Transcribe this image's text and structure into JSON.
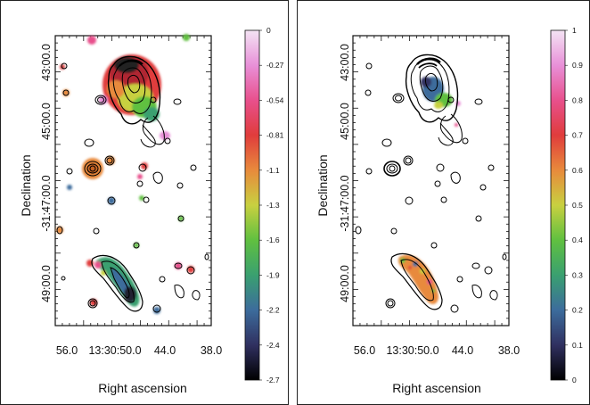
{
  "figure": {
    "panels": [
      {
        "id": "left",
        "y_axis_title": "Declination",
        "x_axis_title": "Right ascension",
        "dec_ticks": [
          "43:00.0",
          "45:00.0",
          "-31:47:00.0",
          "49:00.0"
        ],
        "ra_ticks": [
          "56.0",
          "13:30:50.0",
          "44.0",
          "38.0"
        ],
        "colorbar": {
          "labels": [
            "0",
            "-0.27",
            "-0.54",
            "-0.81",
            "-1.1",
            "-1.3",
            "-1.6",
            "-1.9",
            "-2.2",
            "-2.4",
            "-2.7"
          ],
          "top_value": 0,
          "bottom_value": -2.7
        }
      },
      {
        "id": "right",
        "y_axis_title": "Declination",
        "x_axis_title": "Right ascension",
        "dec_ticks": [
          "43:00.0",
          "45:00.0",
          "-31:47:00.0",
          "49:00.0"
        ],
        "ra_ticks": [
          "56.0",
          "13:30:50.0",
          "44.0",
          "38.0"
        ],
        "colorbar": {
          "labels": [
            "1",
            "0.9",
            "0.8",
            "0.7",
            "0.6",
            "0.5",
            "0.4",
            "0.3",
            "0.2",
            "0.1",
            "0"
          ],
          "top_value": 1,
          "bottom_value": 0
        }
      }
    ],
    "colormap_stops": [
      "#f4e4f4",
      "#e890d8",
      "#e8508c",
      "#e03c3c",
      "#e88a3c",
      "#c8d040",
      "#60c040",
      "#3aa070",
      "#3c6c9c",
      "#303060",
      "#000000"
    ]
  }
}
